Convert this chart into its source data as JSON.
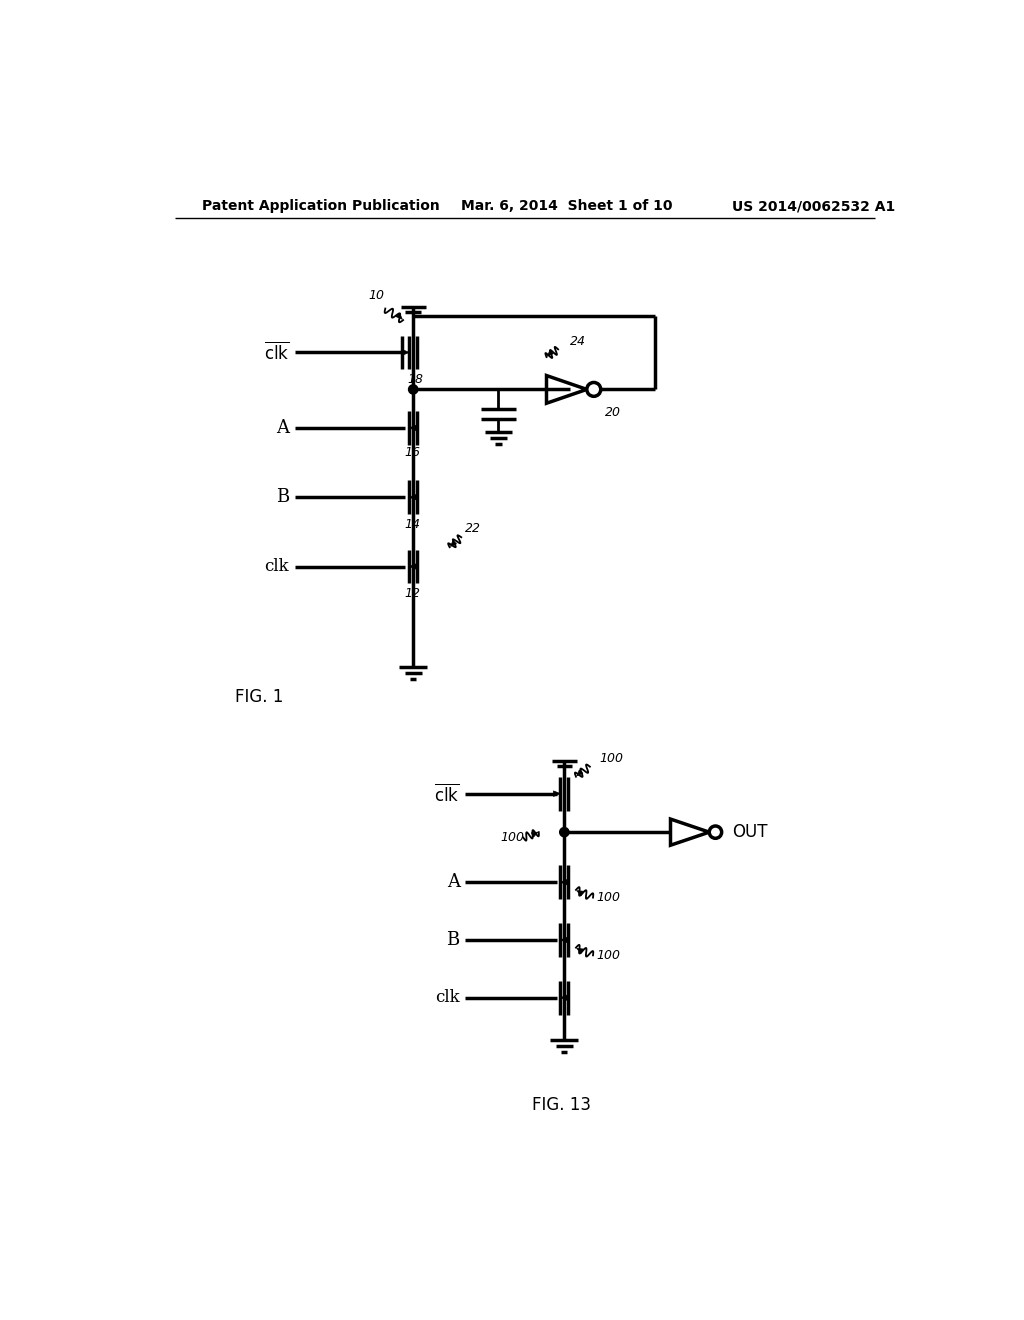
{
  "bg_color": "#ffffff",
  "line_color": "#000000",
  "lw": 2.0,
  "lw_thick": 2.5,
  "header_left": "Patent Application Publication",
  "header_center": "Mar. 6, 2014  Sheet 1 of 10",
  "header_right": "US 2014/0062532 A1",
  "fig1_label": "FIG. 1",
  "fig13_label": "FIG. 13",
  "fig_width": 10.24,
  "fig_height": 13.2
}
